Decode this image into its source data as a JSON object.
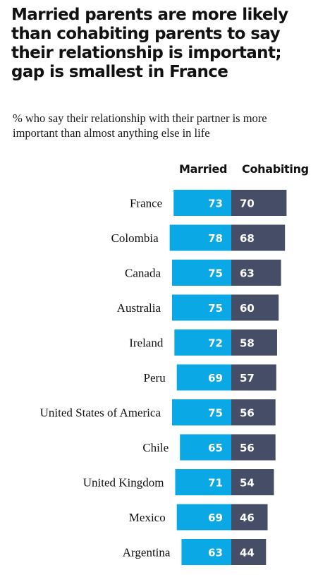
{
  "chart_data": {
    "type": "bar",
    "title": "Married parents are more likely than cohabiting parents to say their relationship is important; gap is smallest in France",
    "subtitle": "% who say their relationship with their partner is more important than almost anything else in life",
    "categories": [
      "France",
      "Colombia",
      "Canada",
      "Australia",
      "Ireland",
      "Peru",
      "United States of America",
      "Chile",
      "United Kingdom",
      "Mexico",
      "Argentina"
    ],
    "series": [
      {
        "name": "Married",
        "color": "#0aa9e6",
        "values": [
          73,
          78,
          75,
          75,
          72,
          69,
          75,
          65,
          71,
          69,
          63
        ]
      },
      {
        "name": "Cohabiting",
        "color": "#454e66",
        "values": [
          70,
          68,
          63,
          60,
          58,
          57,
          56,
          56,
          54,
          46,
          44
        ]
      }
    ],
    "layout": "diverging-stacked-horizontal",
    "legend_placement": "top",
    "grid": false
  }
}
